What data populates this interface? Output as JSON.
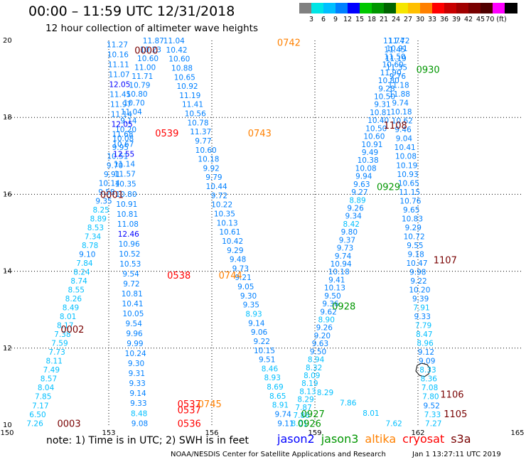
{
  "title": "00:00 – 11:59 UTC 12/31/2018",
  "subtitle": "12 hour collection of altimeter wave heights",
  "scale": {
    "colors": [
      "#808080",
      "#00e5e5",
      "#00bfff",
      "#0080ff",
      "#0000ff",
      "#00c800",
      "#009600",
      "#006400",
      "#f5e600",
      "#ffc000",
      "#ff8000",
      "#ff0000",
      "#c80000",
      "#a00000",
      "#780000",
      "#500000",
      "#ff00ff",
      "#000000"
    ],
    "labels": [
      "3",
      "6",
      "9",
      "12",
      "15",
      "18",
      "21",
      "24",
      "27",
      "30",
      "33",
      "36",
      "39",
      "42",
      "45",
      "70 (ft)"
    ]
  },
  "axes": {
    "x_ticks": [
      "150",
      "153",
      "156",
      "159",
      "162",
      "165"
    ],
    "y_ticks": [
      "20",
      "18",
      "16",
      "14",
      "12",
      "10"
    ],
    "xlim": [
      150,
      165
    ],
    "ylim": [
      10,
      20
    ]
  },
  "tracks": [
    {
      "name": "t1",
      "lon0": 150.85,
      "lon1": 154.3,
      "values": [
        "7.26",
        "6.50",
        "7.17",
        "7.85",
        "8.04",
        "8.57",
        "7.49",
        "8.11",
        "7.73",
        "7.59",
        "7.38",
        "8.17",
        "8.01",
        "8.49",
        "8.26",
        "8.55",
        "8.74",
        "8.24",
        "7.84",
        "9.10",
        "8.78",
        "7.34",
        "8.53",
        "8.89",
        "8.25",
        "9.35",
        "9.58",
        "10.14",
        "9.91",
        "9.70",
        "10.51",
        "9.95",
        "10.08",
        "10.20",
        "9.14",
        "11.04",
        "10.70",
        "10.80",
        "10.79",
        "11.71",
        "11.00",
        "10.60",
        "10.23",
        "11.87"
      ]
    },
    {
      "name": "t2",
      "lon0": 158.15,
      "lon1": 154.9,
      "values": [
        "9.11",
        "9.74",
        "8.91",
        "8.65",
        "8.69",
        "8.93",
        "8.46",
        "9.51",
        "10.15",
        "9.22",
        "9.06",
        "9.14",
        "8.93",
        "9.35",
        "9.30",
        "9.05",
        "9.21",
        "9.73",
        "9.48",
        "9.29",
        "10.42",
        "10.61",
        "10.13",
        "10.35",
        "10.22",
        "9.72",
        "10.44",
        "9.79",
        "9.92",
        "10.18",
        "10.60",
        "9.77",
        "11.37",
        "10.78",
        "10.56",
        "11.41",
        "11.19",
        "10.92",
        "10.65",
        "10.88",
        "10.60",
        "10.42",
        "11.04"
      ]
    },
    {
      "name": "t3",
      "lon0": 153.9,
      "lon1": 153.25,
      "values": [
        "9.08",
        "8.48",
        "9.33",
        "9.14",
        "9.33",
        "9.31",
        "9.30",
        "10.24",
        "9.99",
        "9.96",
        "9.54",
        "10.05",
        "10.41",
        "10.81",
        "9.72",
        "9.54",
        "10.53",
        "10.52",
        "10.96",
        "12.46",
        "11.08",
        "10.81",
        "10.91",
        "10.80",
        "10.35",
        "11.57",
        "11.14",
        "12.55",
        "10.67",
        "11.68",
        "12.05",
        "11.14",
        "11.97",
        "11.45",
        "12.05",
        "11.07",
        "11.11",
        "10.16",
        "11.27"
      ]
    },
    {
      "name": "t4",
      "lon0": 158.55,
      "lon1": 161.45,
      "values": [
        "8.01",
        "7.86",
        "7.87",
        "8.29",
        "8.13",
        "8.19",
        "8.09",
        "8.32",
        "8.94",
        "9.50",
        "9.63",
        "9.20",
        "9.26",
        "8.90",
        "9.62",
        "9.36",
        "9.50",
        "10.13",
        "9.41",
        "10.18",
        "10.94",
        "9.74",
        "9.73",
        "9.37",
        "9.80",
        "8.42",
        "9.34",
        "9.26",
        "8.89",
        "9.27",
        "9.63",
        "9.94",
        "10.08",
        "10.38",
        "9.49",
        "10.91",
        "10.60",
        "10.50",
        "10.40",
        "10.81",
        "9.31",
        "10.50",
        "9.28",
        "10.80",
        "11.90",
        "10.60",
        "11.50",
        "10.91",
        "11.72"
      ]
    },
    {
      "name": "t5",
      "lon0": 161.3,
      "lon1": 159.3,
      "values": [
        "7.62",
        "8.01",
        "7.86",
        "8.29"
      ]
    },
    {
      "name": "t6",
      "lon0": 162.45,
      "lon1": 161.3,
      "values": [
        "7.27",
        "7.33",
        "9.52",
        "7.80",
        "7.08",
        "8.36",
        "8.33",
        "9.09",
        "9.12",
        "8.96",
        "8.47",
        "7.79",
        "9.33",
        "7.91",
        "9.39",
        "10.20",
        "9.22",
        "9.98",
        "10.47",
        "9.18",
        "9.55",
        "10.72",
        "9.29",
        "10.83",
        "9.65",
        "10.76",
        "11.15",
        "10.65",
        "10.93",
        "10.19",
        "10.08",
        "10.41",
        "9.04",
        "9.46",
        "10.62",
        "10.18",
        "9.74",
        "11.88",
        "11.18",
        "9.76",
        "11.35",
        "11.19",
        "11.45",
        "11.74"
      ]
    }
  ],
  "time_labels": [
    {
      "text": "0000",
      "color": "#780000",
      "lon": 153.75,
      "lat": 19.75
    },
    {
      "text": "0001",
      "color": "#780000",
      "lon": 152.75,
      "lat": 16.0
    },
    {
      "text": "0002",
      "color": "#780000",
      "lon": 151.6,
      "lat": 12.5
    },
    {
      "text": "0003",
      "color": "#780000",
      "lon": 151.5,
      "lat": 10.05
    },
    {
      "text": "0539",
      "color": "#ff0000",
      "lon": 154.35,
      "lat": 17.6
    },
    {
      "text": "0538",
      "color": "#ff0000",
      "lon": 154.7,
      "lat": 13.9
    },
    {
      "text": "0537",
      "color": "#ff0000",
      "lon": 155.0,
      "lat": 10.55
    },
    {
      "text": "0537",
      "color": "#ff0000",
      "lon": 155.0,
      "lat": 10.4
    },
    {
      "text": "0536",
      "color": "#ff0000",
      "lon": 155.0,
      "lat": 10.05
    },
    {
      "text": "0742",
      "color": "#ff8000",
      "lon": 157.9,
      "lat": 19.95
    },
    {
      "text": "0743",
      "color": "#ff8000",
      "lon": 157.05,
      "lat": 17.6
    },
    {
      "text": "0744",
      "color": "#ff8000",
      "lon": 156.2,
      "lat": 13.9
    },
    {
      "text": "0745",
      "color": "#ff8000",
      "lon": 155.6,
      "lat": 10.55
    },
    {
      "text": "0930",
      "color": "#009600",
      "lon": 161.95,
      "lat": 19.25
    },
    {
      "text": "0929",
      "color": "#009600",
      "lon": 160.8,
      "lat": 16.2
    },
    {
      "text": "0928",
      "color": "#009600",
      "lon": 159.5,
      "lat": 13.1
    },
    {
      "text": "0927",
      "color": "#009600",
      "lon": 158.6,
      "lat": 10.3
    },
    {
      "text": "0926",
      "color": "#009600",
      "lon": 158.5,
      "lat": 10.05
    },
    {
      "text": "1108",
      "color": "#780000",
      "lon": 161.0,
      "lat": 17.8
    },
    {
      "text": "1107",
      "color": "#780000",
      "lon": 162.45,
      "lat": 14.3
    },
    {
      "text": "1106",
      "color": "#780000",
      "lon": 162.65,
      "lat": 10.8
    },
    {
      "text": "1105",
      "color": "#780000",
      "lon": 162.75,
      "lat": 10.3
    }
  ],
  "legend": [
    {
      "name": "jason2",
      "color": "#0000ff"
    },
    {
      "name": "jason3",
      "color": "#009600"
    },
    {
      "name": "altika",
      "color": "#ff8000"
    },
    {
      "name": "cryosat",
      "color": "#ff0000"
    },
    {
      "name": "s3a",
      "color": "#780000"
    }
  ],
  "note": "note: 1) Time is in UTC; 2) SWH is in feet",
  "credit": "NOAA/NESDIS Center for Satellite Applications and Research",
  "generated": "Jan  1 13:27:11 UTC 2019"
}
